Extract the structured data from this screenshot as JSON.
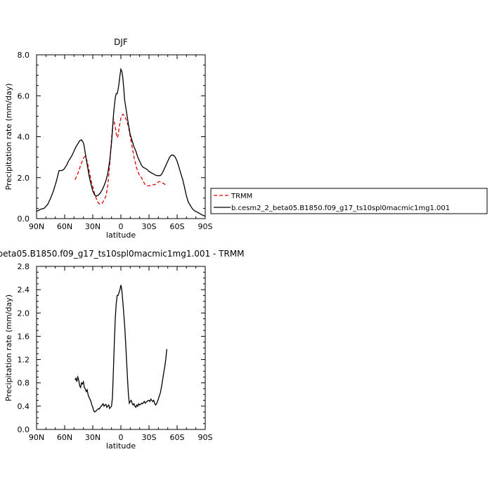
{
  "chart_data": [
    {
      "type": "line",
      "title": "DJF",
      "xlabel": "latitude",
      "ylabel": "Precipitation rate (mm/day)",
      "xlim": [
        90,
        -90
      ],
      "ylim": [
        0,
        8
      ],
      "x_ticks": [
        90,
        60,
        30,
        0,
        -30,
        -60,
        -90
      ],
      "x_tick_labels": [
        "90N",
        "60N",
        "30N",
        "0",
        "30S",
        "60S",
        "90S"
      ],
      "y_ticks": [
        0,
        2,
        4,
        6,
        8
      ],
      "y_tick_labels": [
        "0.0",
        "2.0",
        "4.0",
        "6.0",
        "8.0"
      ],
      "grid": false,
      "legend_position": "right",
      "series": [
        {
          "name": "TRMM",
          "color": "#e00000",
          "dash": "dashed",
          "x": [
            49,
            46,
            43,
            40,
            38,
            36,
            34,
            32,
            30,
            28,
            26,
            24,
            22,
            20,
            18,
            16,
            14,
            12,
            10,
            8,
            6,
            5,
            4,
            3,
            2,
            0,
            -2,
            -4,
            -6,
            -8,
            -10,
            -12,
            -14,
            -16,
            -18,
            -20,
            -22,
            -24,
            -26,
            -28,
            -30,
            -32,
            -34,
            -36,
            -38,
            -40,
            -42,
            -44,
            -46,
            -48,
            -49
          ],
          "y": [
            1.9,
            2.2,
            2.6,
            2.95,
            3.05,
            2.8,
            2.35,
            1.9,
            1.55,
            1.2,
            0.95,
            0.75,
            0.7,
            0.75,
            0.9,
            1.1,
            1.6,
            2.6,
            3.9,
            4.9,
            4.5,
            4.15,
            3.95,
            4.05,
            4.4,
            4.9,
            5.1,
            5.0,
            4.8,
            4.5,
            4.0,
            3.5,
            3.0,
            2.6,
            2.3,
            2.1,
            2.0,
            1.8,
            1.65,
            1.6,
            1.6,
            1.62,
            1.65,
            1.65,
            1.7,
            1.8,
            1.8,
            1.75,
            1.7,
            1.65,
            1.6
          ]
        },
        {
          "name": "b.cesm2_2_beta05.B1850.f09_g17_ts10spl0macmic1mg1.001",
          "color": "#000000",
          "dash": "solid",
          "x": [
            90,
            86,
            82,
            78,
            75,
            72,
            69,
            66,
            63,
            61,
            58,
            56,
            54,
            52,
            50,
            48,
            46,
            44,
            42,
            40,
            39,
            38,
            36,
            34,
            32,
            30,
            28,
            26,
            24,
            22,
            20,
            18,
            16,
            14,
            12,
            10,
            9,
            8,
            7,
            6,
            5,
            4,
            3,
            2,
            1,
            0,
            -1,
            -2,
            -3,
            -4,
            -6,
            -8,
            -10,
            -12,
            -14,
            -16,
            -18,
            -20,
            -22,
            -24,
            -26,
            -28,
            -30,
            -32,
            -34,
            -36,
            -38,
            -40,
            -42,
            -44,
            -46,
            -48,
            -50,
            -52,
            -54,
            -56,
            -58,
            -60,
            -62,
            -64,
            -66,
            -68,
            -70,
            -72,
            -74,
            -76,
            -78,
            -80,
            -82,
            -84,
            -86,
            -88,
            -90
          ],
          "y": [
            0.35,
            0.45,
            0.5,
            0.7,
            1.0,
            1.35,
            1.8,
            2.35,
            2.35,
            2.4,
            2.6,
            2.8,
            2.95,
            3.1,
            3.3,
            3.5,
            3.65,
            3.8,
            3.85,
            3.7,
            3.5,
            3.2,
            2.65,
            2.1,
            1.7,
            1.35,
            1.15,
            1.1,
            1.15,
            1.25,
            1.4,
            1.6,
            1.85,
            2.2,
            2.8,
            3.7,
            4.3,
            5.0,
            5.5,
            5.9,
            6.1,
            6.1,
            6.3,
            6.6,
            7.0,
            7.3,
            7.2,
            6.9,
            6.4,
            5.8,
            5.2,
            4.6,
            4.1,
            3.8,
            3.5,
            3.3,
            3.0,
            2.8,
            2.6,
            2.5,
            2.45,
            2.4,
            2.3,
            2.25,
            2.2,
            2.15,
            2.1,
            2.1,
            2.1,
            2.2,
            2.4,
            2.6,
            2.8,
            3.0,
            3.1,
            3.1,
            3.0,
            2.8,
            2.5,
            2.2,
            1.9,
            1.5,
            1.1,
            0.8,
            0.65,
            0.5,
            0.4,
            0.35,
            0.3,
            0.25,
            0.2,
            0.15,
            0.12
          ]
        }
      ]
    },
    {
      "type": "line",
      "title": "beta05.B1850.f09_g17_ts10spl0macmic1mg1.001 - TRMM",
      "xlabel": "latitude",
      "ylabel": "Precipitation rate (mm/day)",
      "xlim": [
        90,
        -90
      ],
      "ylim": [
        0,
        2.8
      ],
      "x_ticks": [
        90,
        60,
        30,
        0,
        -30,
        -60,
        -90
      ],
      "x_tick_labels": [
        "90N",
        "60N",
        "30N",
        "0",
        "30S",
        "60S",
        "90S"
      ],
      "y_ticks": [
        0,
        0.4,
        0.8,
        1.2,
        1.6,
        2.0,
        2.4,
        2.8
      ],
      "y_tick_labels": [
        "0.0",
        "0.4",
        "0.8",
        "1.2",
        "1.6",
        "2.0",
        "2.4",
        "2.8"
      ],
      "grid": false,
      "series": [
        {
          "color": "#000000",
          "dash": "solid",
          "x": [
            49,
            48,
            47,
            46,
            45,
            44,
            43,
            42,
            41,
            40,
            39,
            38,
            37,
            36,
            35,
            34,
            33,
            32,
            31,
            30,
            29,
            28,
            27,
            26,
            25,
            24,
            23,
            22,
            21,
            20,
            19,
            18,
            17,
            16,
            15,
            14,
            13,
            12,
            11,
            10,
            9,
            8,
            7,
            6,
            5,
            4,
            3,
            2,
            1,
            0,
            -1,
            -2,
            -3,
            -4,
            -5,
            -6,
            -7,
            -8,
            -9,
            -10,
            -11,
            -12,
            -13,
            -14,
            -15,
            -16,
            -17,
            -18,
            -19,
            -20,
            -21,
            -22,
            -23,
            -24,
            -25,
            -26,
            -27,
            -28,
            -29,
            -30,
            -31,
            -32,
            -33,
            -34,
            -35,
            -36,
            -37,
            -38,
            -39,
            -40,
            -41,
            -42,
            -43,
            -44,
            -45,
            -46,
            -47,
            -48,
            -49
          ],
          "y": [
            0.85,
            0.88,
            0.82,
            0.9,
            0.85,
            0.75,
            0.72,
            0.8,
            0.78,
            0.82,
            0.72,
            0.7,
            0.65,
            0.68,
            0.6,
            0.55,
            0.52,
            0.48,
            0.42,
            0.38,
            0.32,
            0.3,
            0.31,
            0.33,
            0.34,
            0.36,
            0.35,
            0.38,
            0.4,
            0.42,
            0.44,
            0.4,
            0.42,
            0.43,
            0.38,
            0.4,
            0.42,
            0.36,
            0.38,
            0.4,
            0.55,
            1.0,
            1.5,
            1.9,
            2.15,
            2.3,
            2.3,
            2.35,
            2.4,
            2.48,
            2.4,
            2.2,
            2.0,
            1.8,
            1.5,
            1.2,
            0.9,
            0.6,
            0.45,
            0.48,
            0.5,
            0.45,
            0.42,
            0.44,
            0.4,
            0.38,
            0.42,
            0.4,
            0.44,
            0.42,
            0.43,
            0.45,
            0.44,
            0.46,
            0.48,
            0.45,
            0.47,
            0.48,
            0.5,
            0.5,
            0.48,
            0.52,
            0.5,
            0.48,
            0.5,
            0.45,
            0.42,
            0.44,
            0.48,
            0.52,
            0.58,
            0.62,
            0.7,
            0.8,
            0.9,
            1.0,
            1.1,
            1.22,
            1.38
          ]
        }
      ]
    }
  ]
}
